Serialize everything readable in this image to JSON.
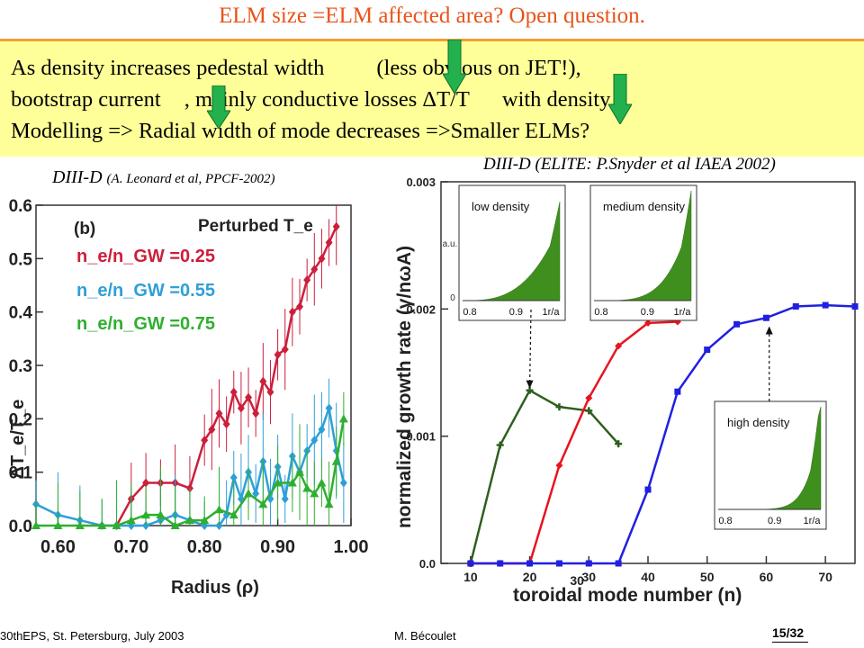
{
  "title": "ELM size =ELM affected area? Open question.",
  "bullets": {
    "line1_a": "As density increases  pedestal width",
    "line1_b": "(less obvious on JET!),",
    "line2_a": "bootstrap current",
    "line2_b": ", mainly conductive losses ΔT/T",
    "line2_c": "with density",
    "line3": "Modelling => Radial width of mode decreases =>Smaller ELMs?"
  },
  "left_caption": {
    "main": "DIII-D",
    "small": "(A. Leonard et al, PPCF-2002)"
  },
  "right_caption": "DIII-D (ELITE: P.Snyder et al IAEA 2002)",
  "footer": {
    "event": "30thEPS, St. Petersburg, July 2003",
    "author": "M. Bécoulet",
    "page": "15/32"
  },
  "colors": {
    "arrow": "#22b14c",
    "red": "#cc1f3c",
    "blue": "#2f9fd8",
    "green": "#2faf2f",
    "elite_red": "#e8141e",
    "elite_blue": "#2020e0",
    "elite_green": "#2f5f1f",
    "title": "#e8541a"
  },
  "chart_data": [
    {
      "type": "line",
      "panel_label": "(b)",
      "title": "Perturbed T_e",
      "xlabel": "Radius (ρ)",
      "ylabel": "ΔT_e/T_e",
      "xlim": [
        0.57,
        1.0
      ],
      "ylim": [
        0,
        0.6
      ],
      "x_ticks": [
        "0.60",
        "0.70",
        "0.80",
        "0.90",
        "1.00"
      ],
      "y_ticks": [
        "0.0",
        "0.1",
        "0.2",
        "0.3",
        "0.4",
        "0.5",
        "0.6"
      ],
      "legend": [
        "n_e/n_GW =0.25",
        "n_e/n_GW =0.55",
        "n_e/n_GW =0.75"
      ],
      "series": [
        {
          "name": "n_e/n_GW =0.25",
          "color": "#cc1f3c",
          "x": [
            0.68,
            0.7,
            0.72,
            0.74,
            0.76,
            0.78,
            0.8,
            0.81,
            0.82,
            0.83,
            0.84,
            0.85,
            0.86,
            0.87,
            0.88,
            0.89,
            0.9,
            0.91,
            0.92,
            0.93,
            0.94,
            0.95,
            0.96,
            0.97,
            0.98
          ],
          "y": [
            0.0,
            0.05,
            0.08,
            0.08,
            0.08,
            0.07,
            0.16,
            0.18,
            0.21,
            0.19,
            0.25,
            0.22,
            0.24,
            0.21,
            0.27,
            0.25,
            0.32,
            0.33,
            0.4,
            0.41,
            0.46,
            0.48,
            0.5,
            0.53,
            0.56
          ]
        },
        {
          "name": "n_e/n_GW =0.55",
          "color": "#2f9fd8",
          "x": [
            0.57,
            0.6,
            0.63,
            0.66,
            0.68,
            0.7,
            0.72,
            0.74,
            0.76,
            0.78,
            0.8,
            0.82,
            0.83,
            0.84,
            0.85,
            0.86,
            0.87,
            0.88,
            0.89,
            0.9,
            0.91,
            0.92,
            0.93,
            0.94,
            0.95,
            0.96,
            0.97,
            0.98,
            0.99
          ],
          "y": [
            0.04,
            0.02,
            0.01,
            0.0,
            0.0,
            0.0,
            0.0,
            0.01,
            0.02,
            0.01,
            0.0,
            0.0,
            0.02,
            0.09,
            0.05,
            0.1,
            0.06,
            0.12,
            0.05,
            0.11,
            0.05,
            0.13,
            0.1,
            0.14,
            0.16,
            0.18,
            0.22,
            0.14,
            0.08
          ]
        },
        {
          "name": "n_e/n_GW =0.75",
          "color": "#2faf2f",
          "x": [
            0.57,
            0.6,
            0.63,
            0.66,
            0.68,
            0.7,
            0.72,
            0.74,
            0.76,
            0.78,
            0.8,
            0.82,
            0.84,
            0.86,
            0.88,
            0.9,
            0.92,
            0.93,
            0.94,
            0.95,
            0.96,
            0.97,
            0.98,
            0.99
          ],
          "y": [
            0.0,
            0.0,
            0.0,
            0.0,
            0.0,
            0.01,
            0.02,
            0.02,
            0.0,
            0.01,
            0.01,
            0.03,
            0.02,
            0.06,
            0.04,
            0.08,
            0.08,
            0.1,
            0.07,
            0.06,
            0.08,
            0.04,
            0.12,
            0.2
          ]
        }
      ]
    },
    {
      "type": "line",
      "xlabel": "toroidal mode number (n)",
      "ylabel": "normalized growth rate (γ/nωA)",
      "xlim": [
        5,
        75
      ],
      "ylim": [
        0,
        0.003
      ],
      "x_ticks": [
        "10",
        "20",
        "30",
        "40",
        "50",
        "60",
        "70"
      ],
      "x_extra_tick": "30",
      "y_ticks": [
        "0.0",
        "0.001",
        "0.002",
        "0.003"
      ],
      "series": [
        {
          "name": "low density",
          "color": "#2f5f1f",
          "x": [
            10,
            15,
            20,
            25,
            30,
            35
          ],
          "y": [
            0.0,
            0.00093,
            0.00136,
            0.00123,
            0.0012,
            0.00094
          ]
        },
        {
          "name": "medium density",
          "color": "#e8141e",
          "x": [
            10,
            15,
            20,
            25,
            30,
            35,
            40,
            45
          ],
          "y": [
            0.0,
            0.0,
            0.0,
            0.00077,
            0.0013,
            0.00171,
            0.00189,
            0.0019
          ]
        },
        {
          "name": "high density",
          "color": "#2020e0",
          "x": [
            10,
            15,
            20,
            25,
            30,
            35,
            40,
            45,
            50,
            55,
            60,
            65,
            70,
            75
          ],
          "y": [
            0.0,
            0.0,
            0.0,
            0.0,
            0.0,
            0.0,
            0.00058,
            0.00135,
            0.00168,
            0.00188,
            0.00193,
            0.00202,
            0.00203,
            0.00202
          ]
        }
      ],
      "insets": [
        {
          "label": "low density",
          "x_ticks": [
            "0.8",
            "0.9",
            "1r/a"
          ],
          "ylabel": "a.u.",
          "y_ticks": [
            "0"
          ]
        },
        {
          "label": "medium density",
          "x_ticks": [
            "0.8",
            "0.9",
            "1r/a"
          ]
        },
        {
          "label": "high density",
          "x_ticks": [
            "0.8",
            "0.9",
            "1r/a"
          ]
        }
      ]
    }
  ]
}
